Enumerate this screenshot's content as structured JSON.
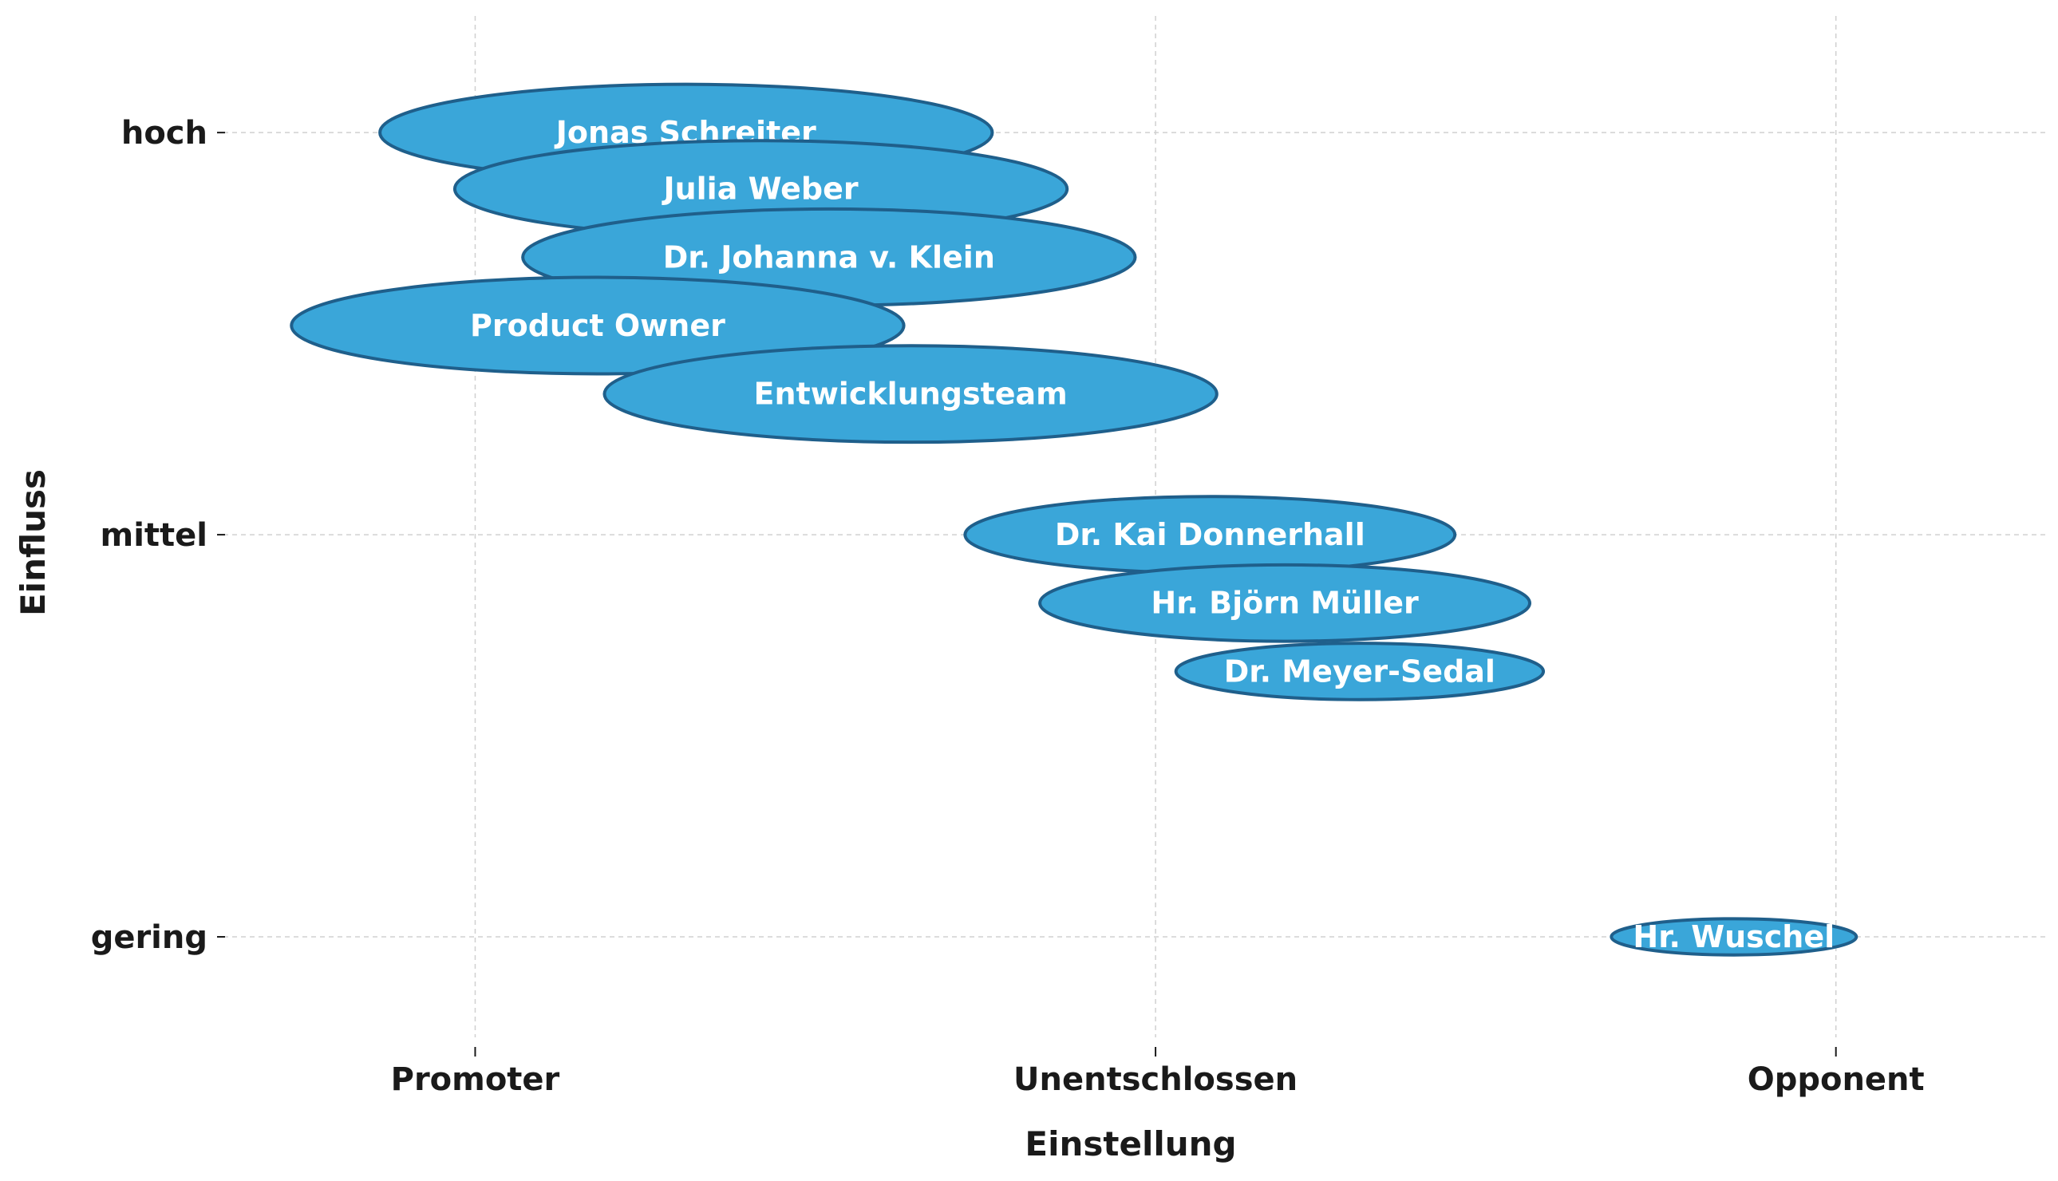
{
  "chart_data": {
    "type": "bubble",
    "title": "",
    "xlabel": "Einstellung",
    "ylabel": "Einfluss",
    "x_categories": [
      "Promoter",
      "Unentschlossen",
      "Opponent"
    ],
    "y_categories": [
      "gering",
      "mittel",
      "hoch"
    ],
    "xlim": [
      -0.37,
      2.31
    ],
    "ylim": [
      -0.25,
      2.29
    ],
    "grid": true,
    "legend": "none",
    "colors": {
      "fill": "#3aa6d9",
      "stroke": "#1f5f8b",
      "text": "#ffffff"
    },
    "points": [
      {
        "label": "Jonas Schreiter",
        "x": 0.31,
        "y": 2.0,
        "rx": 0.45,
        "ry": 0.12
      },
      {
        "label": "Julia Weber",
        "x": 0.42,
        "y": 1.86,
        "rx": 0.45,
        "ry": 0.12
      },
      {
        "label": "Dr. Johanna v. Klein",
        "x": 0.52,
        "y": 1.69,
        "rx": 0.45,
        "ry": 0.12
      },
      {
        "label": "Product Owner",
        "x": 0.18,
        "y": 1.52,
        "rx": 0.45,
        "ry": 0.12
      },
      {
        "label": "Entwicklungsteam",
        "x": 0.64,
        "y": 1.35,
        "rx": 0.45,
        "ry": 0.12
      },
      {
        "label": "Dr. Kai Donnerhall",
        "x": 1.08,
        "y": 1.0,
        "rx": 0.36,
        "ry": 0.095
      },
      {
        "label": "Hr. Björn Müller",
        "x": 1.19,
        "y": 0.83,
        "rx": 0.36,
        "ry": 0.095
      },
      {
        "label": "Dr. Meyer-Sedal",
        "x": 1.3,
        "y": 0.66,
        "rx": 0.27,
        "ry": 0.07
      },
      {
        "label": "Hr. Wuschel",
        "x": 1.85,
        "y": 0.0,
        "rx": 0.18,
        "ry": 0.045
      }
    ]
  }
}
